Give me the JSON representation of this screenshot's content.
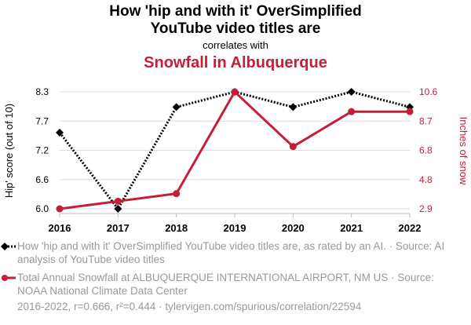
{
  "header": {
    "title_line1": "How 'hip and with it' OverSimplified",
    "title_line2": "YouTube video titles are",
    "subtitle": "correlates with",
    "title_line3": "Snowfall in Albuquerque"
  },
  "chart_data": {
    "type": "line",
    "x": [
      2016,
      2017,
      2018,
      2019,
      2020,
      2021,
      2022
    ],
    "series": [
      {
        "name": "How 'hip and with it' OverSimplified YouTube video titles are, as rated by an AI. · Source: AI analysis of YouTube video titles",
        "axis": "left",
        "values": [
          7.5,
          6.0,
          8.0,
          8.3,
          8.0,
          8.3,
          8.0
        ],
        "color": "#000000",
        "style": "dotted",
        "marker": "diamond"
      },
      {
        "name": "Total Annual Snowfall at ALBUQUERQUE INTERNATIONAL AIRPORT, NM US · Source: NOAA National Climate Data Center",
        "axis": "right",
        "values": [
          2.9,
          3.4,
          3.9,
          10.6,
          7.0,
          9.3,
          9.3
        ],
        "color": "#c41e3a",
        "style": "solid",
        "marker": "circle"
      }
    ],
    "y_left": {
      "label": "Hip' score (out of 10)",
      "ticks": [
        "6.0",
        "6.6",
        "7.2",
        "7.7",
        "8.3"
      ],
      "range": [
        6.0,
        8.3
      ]
    },
    "y_right": {
      "label": "Inches of snow",
      "ticks": [
        "2.9",
        "4.8",
        "6.8",
        "8.7",
        "10.6"
      ],
      "range": [
        2.9,
        10.6
      ]
    },
    "x_ticks": [
      "2016",
      "2017",
      "2018",
      "2019",
      "2020",
      "2021",
      "2022"
    ],
    "grid": "horizontal",
    "legend_position": "bottom"
  },
  "footer": {
    "text": "2016-2022, r=0.666, r²=0.444 · tylervigen.com/spurious/correlation/22594"
  },
  "colors": {
    "accent": "#c41e3a",
    "primary": "#000000",
    "muted": "#999999",
    "grid": "#dddddd"
  }
}
